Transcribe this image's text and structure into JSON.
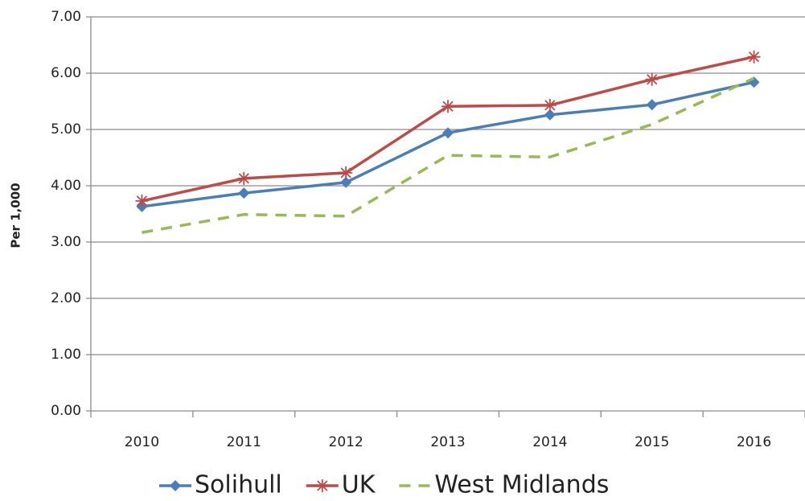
{
  "chart_data": {
    "type": "line",
    "y_label": "Per 1,000",
    "categories": [
      "2010",
      "2011",
      "2012",
      "2013",
      "2014",
      "2015",
      "2016"
    ],
    "series": [
      {
        "name": "Solihull",
        "color": "#4a7ebb",
        "marker": "diamond",
        "values": [
          3.63,
          3.87,
          4.06,
          4.94,
          5.26,
          5.44,
          5.84
        ]
      },
      {
        "name": "UK",
        "color": "#be4b48",
        "marker": "asterisk",
        "values": [
          3.73,
          4.13,
          4.23,
          5.41,
          5.43,
          5.89,
          6.29
        ]
      },
      {
        "name": "West Midlands",
        "color": "#98b954",
        "dashed": true,
        "values": [
          3.17,
          3.49,
          3.46,
          4.54,
          4.51,
          5.09,
          5.91
        ]
      }
    ],
    "ylim": [
      0,
      7
    ],
    "yticks": [
      {
        "value": 0,
        "label": "0.00"
      },
      {
        "value": 1,
        "label": "1.00"
      },
      {
        "value": 2,
        "label": "2.00"
      },
      {
        "value": 3,
        "label": "3.00"
      },
      {
        "value": 4,
        "label": "4.00"
      },
      {
        "value": 5,
        "label": "5.00"
      },
      {
        "value": 6,
        "label": "6.00"
      },
      {
        "value": 7,
        "label": "7.00"
      }
    ],
    "grid": true,
    "legend": "bottom"
  }
}
